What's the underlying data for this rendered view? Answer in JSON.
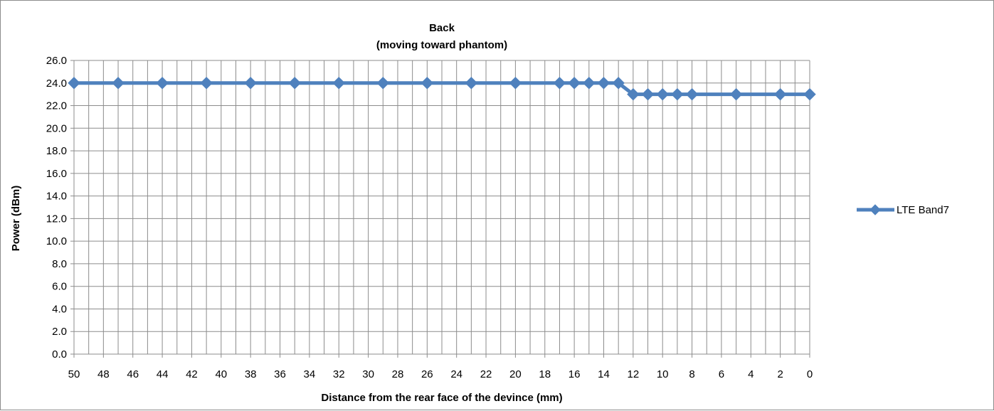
{
  "chart_data": {
    "type": "line",
    "title": "Back",
    "subtitle": "(moving toward phantom)",
    "xlabel": "Distance from the rear face of the devince (mm)",
    "ylabel": "Power (dBm)",
    "xlim": [
      50,
      0
    ],
    "ylim": [
      0,
      26
    ],
    "x_tick_labels": [
      "50",
      "48",
      "46",
      "44",
      "42",
      "40",
      "38",
      "36",
      "34",
      "32",
      "30",
      "28",
      "26",
      "24",
      "22",
      "20",
      "18",
      "16",
      "14",
      "12",
      "10",
      "8",
      "6",
      "4",
      "2",
      "0"
    ],
    "y_tick_labels": [
      "0.0",
      "2.0",
      "4.0",
      "6.0",
      "8.0",
      "10.0",
      "12.0",
      "14.0",
      "16.0",
      "18.0",
      "20.0",
      "22.0",
      "24.0",
      "26.0"
    ],
    "grid": true,
    "legend_position": "right",
    "series": [
      {
        "name": "LTE Band7",
        "color": "#4f81bd",
        "marker": "diamond",
        "x": [
          50,
          47,
          44,
          41,
          38,
          35,
          32,
          29,
          26,
          23,
          20,
          17,
          16,
          15,
          14,
          13,
          12,
          11,
          10,
          9,
          8,
          5,
          2,
          0
        ],
        "y": [
          24,
          24,
          24,
          24,
          24,
          24,
          24,
          24,
          24,
          24,
          24,
          24,
          24,
          24,
          24,
          24,
          23,
          23,
          23,
          23,
          23,
          23,
          23,
          23
        ]
      }
    ]
  }
}
